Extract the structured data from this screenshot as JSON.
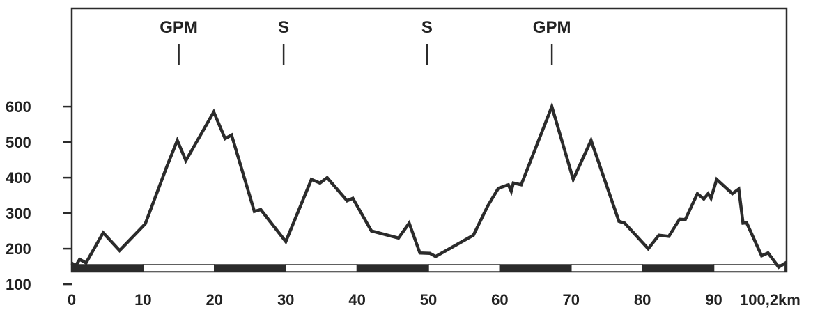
{
  "chart_data": {
    "type": "line",
    "x_unit": "km",
    "x_total": 100.2,
    "xlim": [
      0,
      100.2
    ],
    "ylim": [
      50,
      700
    ],
    "y_ticks": [
      100,
      200,
      300,
      400,
      500,
      600
    ],
    "y_tick_labels": [
      "100",
      "200",
      "300",
      "400",
      "500",
      "600"
    ],
    "x_ticks": [
      0,
      10,
      20,
      30,
      40,
      50,
      60,
      70,
      80,
      90,
      100.2
    ],
    "x_tick_labels": [
      "0",
      "10",
      "20",
      "30",
      "40",
      "50",
      "60",
      "70",
      "80",
      "90",
      "100,2km"
    ],
    "grid": false,
    "colors": {
      "line": "#2b2b2b",
      "band_dark": "#2b2b2b",
      "band_light": "#ffffff"
    },
    "annotations": [
      {
        "x": 15,
        "label": "GPM"
      },
      {
        "x": 29.7,
        "label": "S"
      },
      {
        "x": 49.8,
        "label": "S"
      },
      {
        "x": 67.3,
        "label": "GPM"
      }
    ],
    "series": [
      {
        "x": [
          0,
          0.5,
          1.1,
          2.0,
          4.4,
          6.7,
          10.3,
          13.3,
          14.8,
          16.0,
          19.9,
          21.5,
          22.4,
          25.6,
          26.5,
          30.0,
          33.6,
          34.8,
          35.8,
          38.6,
          39.4,
          42.0,
          45.8,
          47.3,
          48.8,
          50.2,
          51.0,
          56.3,
          58.3,
          59.8,
          61.2,
          61.6,
          61.9,
          63.0,
          67.3,
          70.3,
          72.8,
          76.7,
          77.5,
          80.8,
          82.3,
          83.7,
          85.2,
          86.0,
          87.7,
          88.6,
          89.2,
          89.6,
          90.4,
          92.6,
          93.5,
          94.1,
          94.6,
          96.7,
          97.6,
          99.1,
          100.2
        ],
        "y": [
          160,
          150,
          170,
          160,
          245,
          195,
          270,
          430,
          505,
          448,
          585,
          510,
          520,
          305,
          310,
          220,
          395,
          385,
          400,
          335,
          342,
          250,
          230,
          272,
          188,
          187,
          178,
          238,
          320,
          370,
          380,
          362,
          385,
          380,
          600,
          395,
          505,
          277,
          272,
          200,
          238,
          235,
          283,
          282,
          355,
          340,
          355,
          342,
          395,
          355,
          368,
          272,
          273,
          180,
          188,
          148,
          162
        ]
      }
    ]
  }
}
